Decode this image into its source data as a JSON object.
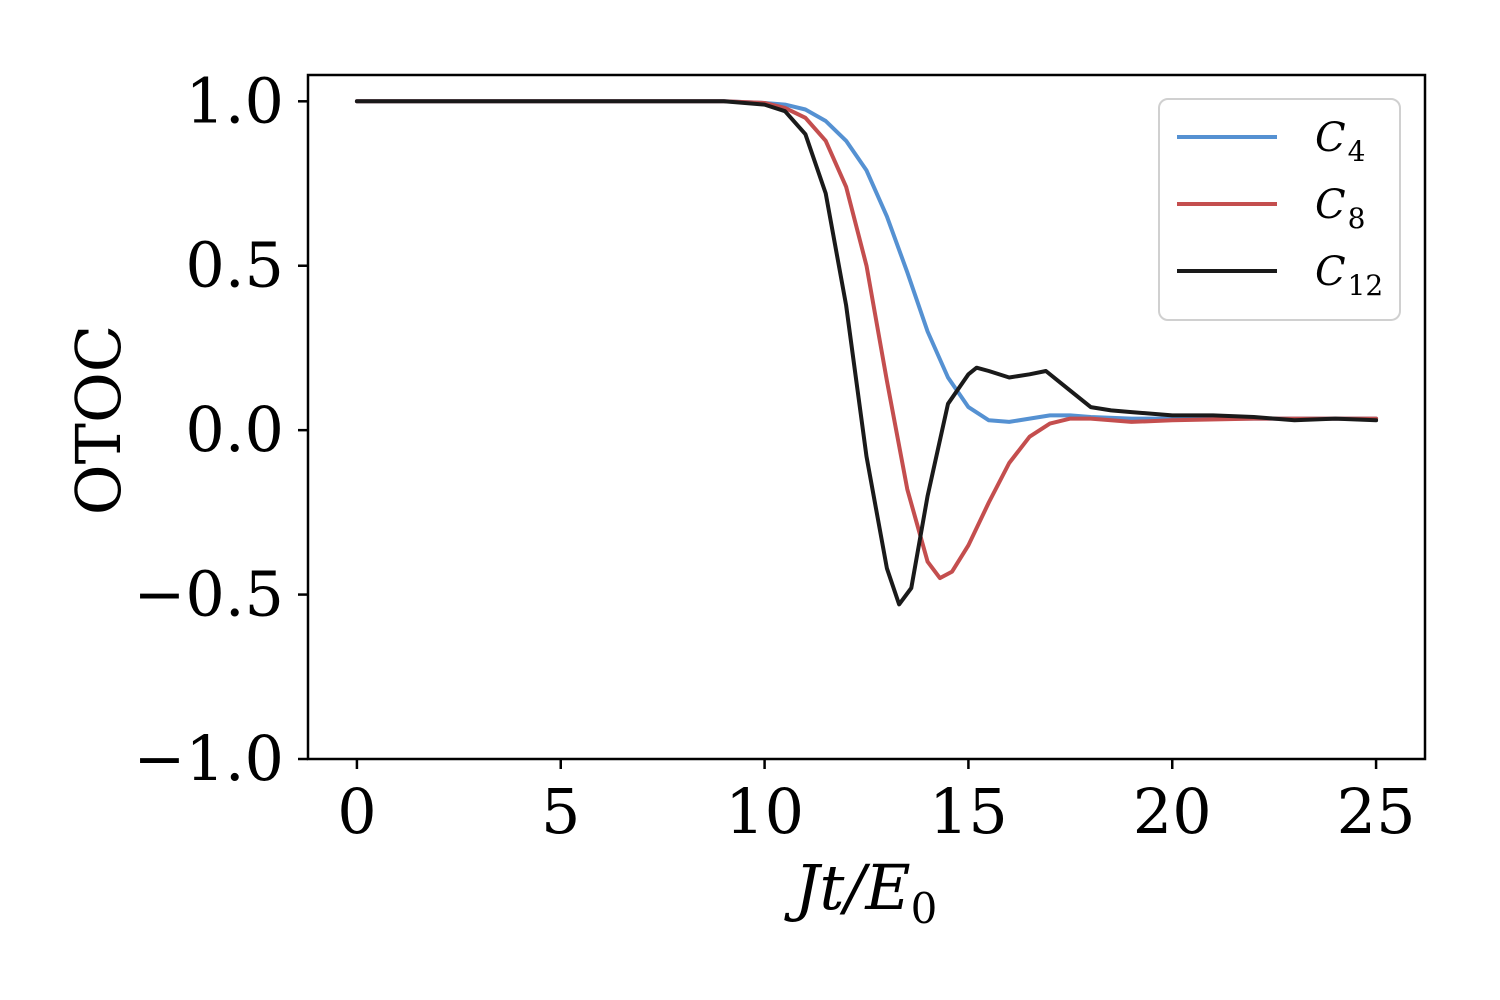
{
  "chart_data": {
    "type": "line",
    "title": "",
    "xlabel": {
      "main": "Jt/E",
      "sub": "0"
    },
    "ylabel": "OTOC",
    "xlim": [
      -1.2,
      26.2
    ],
    "ylim": [
      -1.0,
      1.08
    ],
    "xticks": [
      0,
      5,
      10,
      15,
      20,
      25
    ],
    "yticks": [
      1.0,
      0.5,
      0.0,
      -0.5,
      -1.0
    ],
    "xtick_labels": [
      "0",
      "5",
      "10",
      "15",
      "20",
      "25"
    ],
    "ytick_labels": [
      "1.0",
      "0.5",
      "0.0",
      "−0.5",
      "−1.0"
    ],
    "legend_position": "top-right",
    "grid": false,
    "series": [
      {
        "name": "C",
        "sub": "4",
        "color": "#5591d2",
        "x": [
          0,
          9.0,
          10.0,
          10.5,
          11.0,
          11.5,
          12.0,
          12.5,
          13.0,
          13.5,
          14.0,
          14.5,
          15.0,
          15.5,
          16.0,
          16.5,
          17.0,
          17.5,
          18.0,
          19.0,
          20.0,
          22.0,
          25.0
        ],
        "y": [
          1.0,
          1.0,
          0.995,
          0.99,
          0.975,
          0.94,
          0.88,
          0.79,
          0.65,
          0.48,
          0.3,
          0.16,
          0.07,
          0.03,
          0.025,
          0.035,
          0.045,
          0.045,
          0.04,
          0.035,
          0.035,
          0.035,
          0.035
        ]
      },
      {
        "name": "C",
        "sub": "8",
        "color": "#c44e4e",
        "x": [
          0,
          9.0,
          10.0,
          10.5,
          11.0,
          11.5,
          12.0,
          12.5,
          13.0,
          13.5,
          14.0,
          14.3,
          14.6,
          15.0,
          15.5,
          16.0,
          16.5,
          17.0,
          17.5,
          18.0,
          19.0,
          20.0,
          22.0,
          25.0
        ],
        "y": [
          1.0,
          1.0,
          0.995,
          0.98,
          0.95,
          0.88,
          0.74,
          0.5,
          0.15,
          -0.18,
          -0.4,
          -0.45,
          -0.43,
          -0.35,
          -0.22,
          -0.1,
          -0.02,
          0.02,
          0.035,
          0.035,
          0.025,
          0.03,
          0.035,
          0.035
        ]
      },
      {
        "name": "C",
        "sub": "12",
        "color": "#1a1a1a",
        "x": [
          0,
          9.0,
          10.0,
          10.5,
          11.0,
          11.5,
          12.0,
          12.5,
          13.0,
          13.3,
          13.6,
          14.0,
          14.5,
          15.0,
          15.2,
          15.5,
          16.0,
          16.5,
          16.9,
          17.5,
          18.0,
          18.5,
          19.0,
          20.0,
          21.0,
          22.0,
          22.5,
          23.0,
          24.0,
          25.0
        ],
        "y": [
          1.0,
          1.0,
          0.99,
          0.97,
          0.9,
          0.72,
          0.38,
          -0.08,
          -0.42,
          -0.53,
          -0.48,
          -0.2,
          0.08,
          0.17,
          0.19,
          0.18,
          0.16,
          0.17,
          0.18,
          0.12,
          0.07,
          0.06,
          0.055,
          0.045,
          0.045,
          0.04,
          0.035,
          0.03,
          0.035,
          0.03
        ]
      }
    ]
  }
}
